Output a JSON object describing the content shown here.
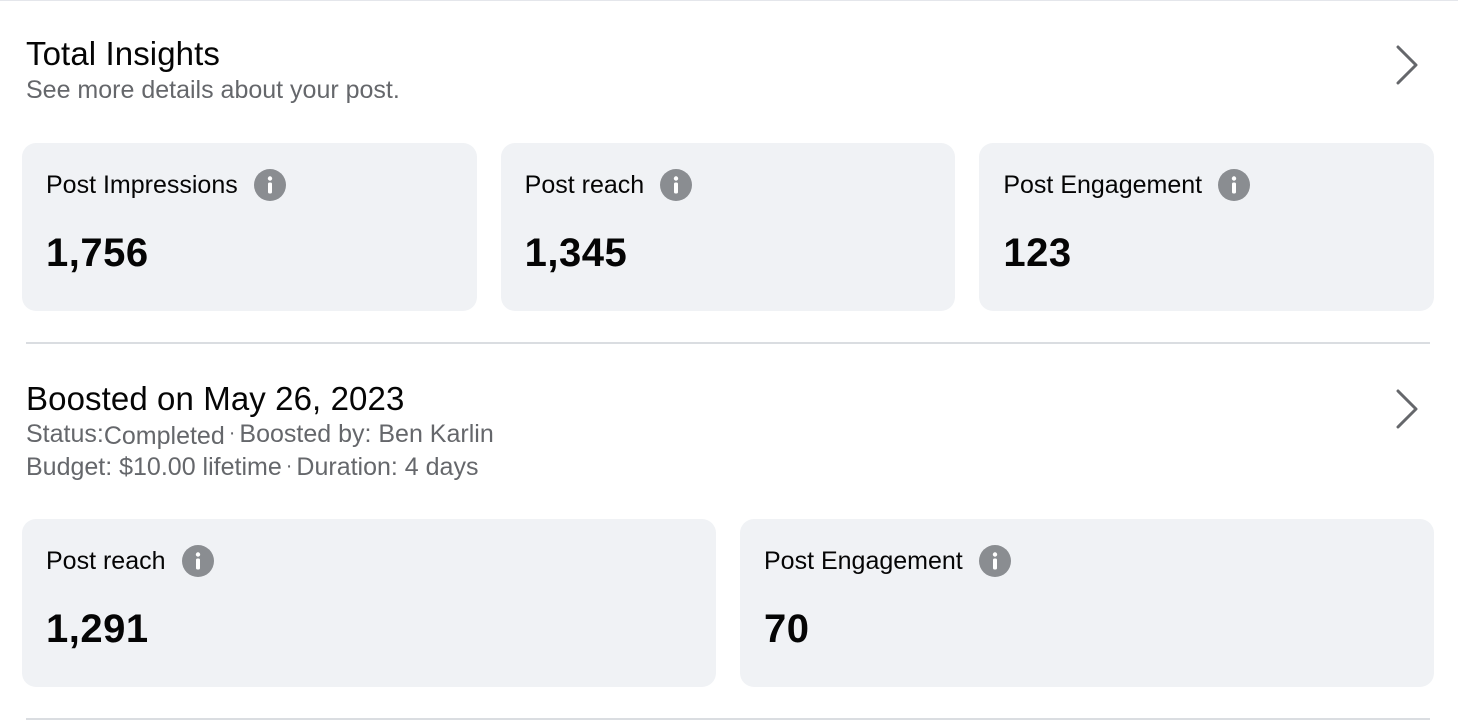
{
  "total_insights": {
    "title": "Total Insights",
    "subtitle": "See more details about your post.",
    "cards": [
      {
        "label": "Post Impressions",
        "value": "1,756"
      },
      {
        "label": "Post reach",
        "value": "1,345"
      },
      {
        "label": "Post Engagement",
        "value": "123"
      }
    ]
  },
  "boost": {
    "title": "Boosted on May 26, 2023",
    "status_label": "Status:",
    "status_value": "Completed",
    "separator": "·",
    "boosted_by": "Boosted by: Ben Karlin",
    "budget": "Budget: $10.00 lifetime",
    "duration": "Duration: 4 days",
    "cards": [
      {
        "label": "Post reach",
        "value": "1,291"
      },
      {
        "label": "Post Engagement",
        "value": "70"
      }
    ]
  },
  "icons": {
    "chevron": "chevron-right-icon",
    "info": "info-icon"
  },
  "colors": {
    "card_bg": "#f0f2f5",
    "secondary_text": "#65676b",
    "icon_gray": "#8a8d91",
    "divider": "#dadde1"
  }
}
